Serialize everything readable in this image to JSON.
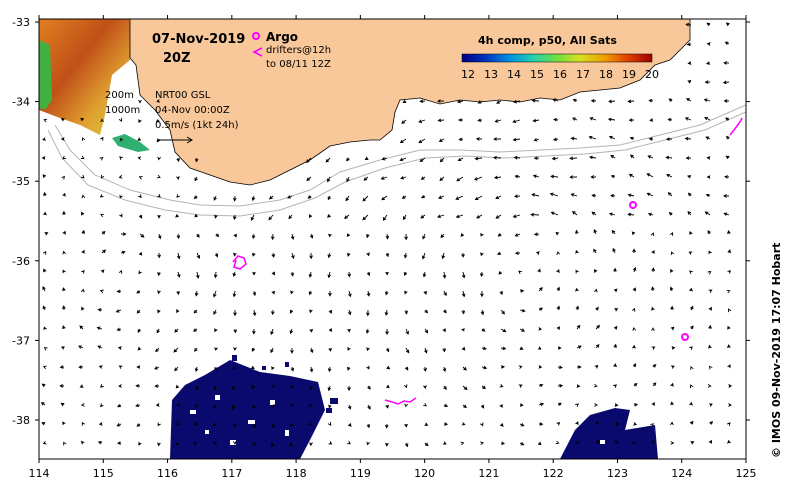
{
  "title": {
    "date": "07-Nov-2019",
    "time": "20Z"
  },
  "legend": {
    "argo": "Argo",
    "drifters_line1": "drifters@12h",
    "drifters_line2": "to 08/11 12Z",
    "isobath_200": "200m",
    "isobath_1000": "1000m",
    "product": "NRT00 GSL",
    "product_date": "04-Nov 00:00Z",
    "vector_scale": "0.5m/s (1kt 24h)"
  },
  "colorbar": {
    "title": "4h comp, p50, All Sats",
    "ticks": [
      "12",
      "13",
      "14",
      "15",
      "16",
      "17",
      "18",
      "19",
      "20"
    ],
    "colors": [
      "#000080",
      "#0030c0",
      "#0090e0",
      "#20d0b0",
      "#70e040",
      "#d8e020",
      "#f0a000",
      "#e04000",
      "#a00000"
    ]
  },
  "axes": {
    "x_ticks": [
      "114",
      "115",
      "116",
      "117",
      "118",
      "119",
      "120",
      "121",
      "122",
      "123",
      "124",
      "125"
    ],
    "y_ticks": [
      "-33",
      "-34",
      "-35",
      "-36",
      "-37",
      "-38"
    ]
  },
  "credit": "© IMOS 09-Nov-2019 17:07 Hobart",
  "colors": {
    "land": "#f8c89a",
    "argo": "#ff00ff",
    "sst_cold": "#0a0a6e",
    "contour": "#b4b4b4"
  },
  "argo_floats": [
    {
      "lon": 123.2,
      "lat": -35.33
    },
    {
      "lon": 124.0,
      "lat": -37.0
    }
  ]
}
